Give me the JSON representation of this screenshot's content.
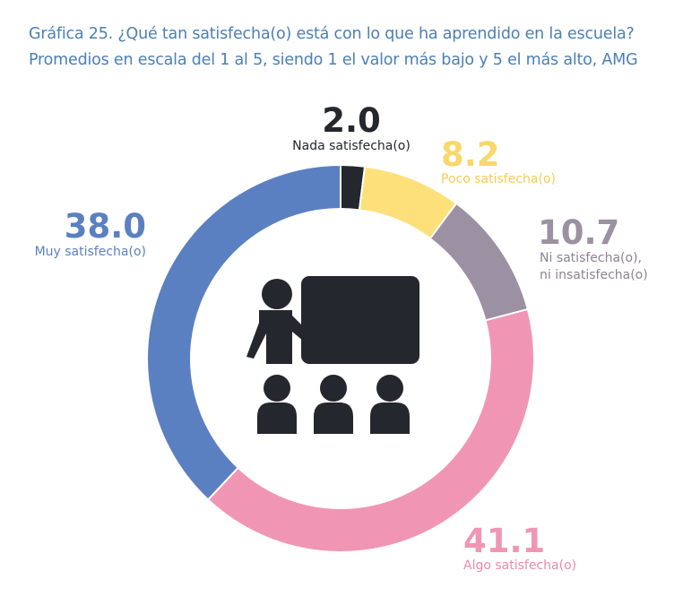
{
  "header": {
    "line1": "Gráfica 25. ¿Qué tan satisfecha(o) está con lo que ha aprendido en la escuela?",
    "line2": "Promedios en escala del 1 al 5, siendo 1 el valor más bajo y 5 el más alto, AMG"
  },
  "chart_data": {
    "type": "pie",
    "variant": "donut",
    "center_icon": "classroom-teacher-students-icon",
    "slices": [
      {
        "label": "Nada satisfecha(o)",
        "value": 2.0,
        "display": "2.0",
        "color": "#25272e"
      },
      {
        "label": "Poco satisfecha(o)",
        "value": 8.2,
        "display": "8.2",
        "color": "#fde07a"
      },
      {
        "label": "Ni satisfecha(o), ni insatisfecha(o)",
        "label_lines": [
          "Ni satisfecha(o),",
          "ni insatisfecha(o)"
        ],
        "value": 10.7,
        "display": "10.7",
        "color": "#9c90a3"
      },
      {
        "label": "Algo satisfecha(o)",
        "value": 41.1,
        "display": "41.1",
        "color": "#f096b4"
      },
      {
        "label": "Muy satisfecha(o)",
        "value": 38.0,
        "display": "38.0",
        "color": "#5b80c1"
      }
    ]
  }
}
